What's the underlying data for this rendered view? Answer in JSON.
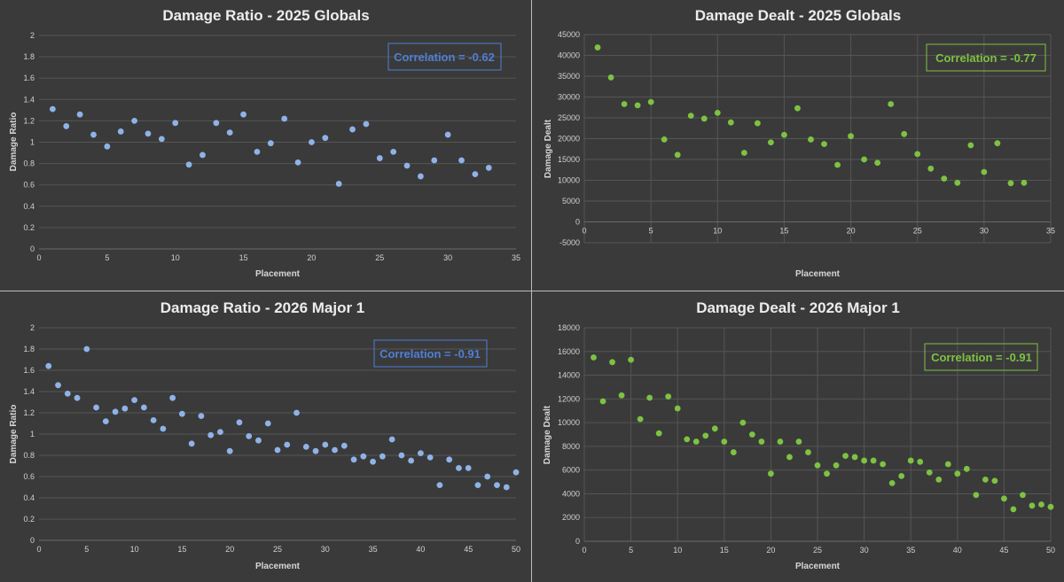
{
  "chart_data": [
    {
      "type": "scatter",
      "title": "Damage Ratio - 2025 Globals",
      "xlabel": "Placement",
      "ylabel": "Damage Ratio",
      "xlim": [
        0,
        35
      ],
      "ylim": [
        0,
        2
      ],
      "x_ticks": [
        "0",
        "5",
        "10",
        "15",
        "20",
        "25",
        "30",
        "35"
      ],
      "y_ticks": [
        "0",
        "0.2",
        "0.4",
        "0.6",
        "0.8",
        "1",
        "1.2",
        "1.4",
        "1.6",
        "1.8",
        "2"
      ],
      "grid": "horizontal",
      "color": "#8fb2e8",
      "annotation": "Correlation = -0.62",
      "annotation_color": "#4f7fd6",
      "x": [
        1,
        2,
        3,
        4,
        5,
        6,
        7,
        8,
        9,
        10,
        11,
        12,
        13,
        14,
        15,
        16,
        17,
        18,
        19,
        20,
        21,
        22,
        23,
        24,
        25,
        26,
        27,
        28,
        29,
        30,
        31,
        32,
        33
      ],
      "y": [
        1.31,
        1.15,
        1.26,
        1.07,
        0.96,
        1.1,
        1.2,
        1.08,
        1.03,
        1.18,
        0.79,
        0.88,
        1.18,
        1.09,
        1.26,
        0.91,
        0.99,
        1.22,
        0.81,
        1.0,
        1.04,
        0.61,
        1.12,
        1.17,
        0.85,
        0.91,
        0.78,
        0.68,
        0.83,
        1.07,
        0.83,
        0.7,
        0.76
      ]
    },
    {
      "type": "scatter",
      "title": "Damage Dealt - 2025 Globals",
      "xlabel": "Placement",
      "ylabel": "Damage Dealt",
      "xlim": [
        0,
        35
      ],
      "ylim": [
        -5000,
        45000
      ],
      "x_ticks": [
        "0",
        "5",
        "10",
        "15",
        "20",
        "25",
        "30",
        "35"
      ],
      "y_ticks": [
        "-5000",
        "0",
        "5000",
        "10000",
        "15000",
        "20000",
        "25000",
        "30000",
        "35000",
        "40000",
        "45000"
      ],
      "grid": "both",
      "color": "#7dc242",
      "annotation": "Correlation = -0.77",
      "annotation_color": "#7dc242",
      "x": [
        1,
        2,
        3,
        4,
        5,
        6,
        7,
        8,
        9,
        10,
        11,
        12,
        13,
        14,
        15,
        16,
        17,
        18,
        19,
        20,
        21,
        22,
        23,
        24,
        25,
        26,
        27,
        28,
        29,
        30,
        31,
        32,
        33
      ],
      "y": [
        41900,
        34700,
        28300,
        28000,
        28800,
        19800,
        16100,
        25500,
        24800,
        26200,
        23900,
        16600,
        23700,
        19100,
        20900,
        27300,
        19800,
        18700,
        13700,
        20600,
        15000,
        14200,
        28300,
        21100,
        16300,
        12800,
        10400,
        9400,
        18400,
        12000,
        18900,
        9300,
        9400
      ]
    },
    {
      "type": "scatter",
      "title": "Damage Ratio - 2026 Major 1",
      "xlabel": "Placement",
      "ylabel": "Damage Ratio",
      "xlim": [
        0,
        50
      ],
      "ylim": [
        0,
        2
      ],
      "x_ticks": [
        "0",
        "5",
        "10",
        "15",
        "20",
        "25",
        "30",
        "35",
        "40",
        "45",
        "50"
      ],
      "y_ticks": [
        "0",
        "0.2",
        "0.4",
        "0.6",
        "0.8",
        "1",
        "1.2",
        "1.4",
        "1.6",
        "1.8",
        "2"
      ],
      "grid": "horizontal",
      "color": "#8fb2e8",
      "annotation": "Correlation = -0.91",
      "annotation_color": "#4f7fd6",
      "x": [
        1,
        2,
        3,
        4,
        5,
        6,
        7,
        8,
        9,
        10,
        11,
        12,
        13,
        14,
        15,
        16,
        17,
        18,
        19,
        20,
        21,
        22,
        23,
        24,
        25,
        26,
        27,
        28,
        29,
        30,
        31,
        32,
        33,
        34,
        35,
        36,
        37,
        38,
        39,
        40,
        41,
        42,
        43,
        44,
        45,
        46,
        47,
        48,
        49,
        50
      ],
      "y": [
        1.64,
        1.46,
        1.38,
        1.34,
        1.8,
        1.25,
        1.12,
        1.21,
        1.24,
        1.32,
        1.25,
        1.13,
        1.05,
        1.34,
        1.19,
        0.91,
        1.17,
        0.99,
        1.02,
        0.84,
        1.11,
        0.98,
        0.94,
        1.1,
        0.85,
        0.9,
        1.2,
        0.88,
        0.84,
        0.9,
        0.85,
        0.89,
        0.76,
        0.79,
        0.74,
        0.79,
        0.95,
        0.8,
        0.75,
        0.82,
        0.78,
        0.52,
        0.76,
        0.68,
        0.68,
        0.52,
        0.6,
        0.52,
        0.5,
        0.64
      ]
    },
    {
      "type": "scatter",
      "title": "Damage Dealt - 2026 Major 1",
      "xlabel": "Placement",
      "ylabel": "Damage Dealt",
      "xlim": [
        0,
        50
      ],
      "ylim": [
        0,
        18000
      ],
      "x_ticks": [
        "0",
        "5",
        "10",
        "15",
        "20",
        "25",
        "30",
        "35",
        "40",
        "45",
        "50"
      ],
      "y_ticks": [
        "0",
        "2000",
        "4000",
        "6000",
        "8000",
        "10000",
        "12000",
        "14000",
        "16000",
        "18000"
      ],
      "grid": "both",
      "color": "#7dc242",
      "annotation": "Correlation = -0.91",
      "annotation_color": "#7dc242",
      "x": [
        1,
        2,
        3,
        4,
        5,
        6,
        7,
        8,
        9,
        10,
        11,
        12,
        13,
        14,
        15,
        16,
        17,
        18,
        19,
        20,
        21,
        22,
        23,
        24,
        25,
        26,
        27,
        28,
        29,
        30,
        31,
        32,
        33,
        34,
        35,
        36,
        37,
        38,
        39,
        40,
        41,
        42,
        43,
        44,
        45,
        46,
        47,
        48,
        49,
        50
      ],
      "y": [
        15500,
        11800,
        15100,
        12300,
        15300,
        10300,
        12100,
        9100,
        12200,
        11200,
        8600,
        8400,
        8900,
        9500,
        8400,
        7500,
        10000,
        9000,
        8400,
        5700,
        8400,
        7100,
        8400,
        7500,
        6400,
        5700,
        6400,
        7200,
        7100,
        6800,
        6800,
        6500,
        4900,
        5500,
        6800,
        6700,
        5800,
        5200,
        6500,
        5700,
        6100,
        3900,
        5200,
        5100,
        3600,
        2700,
        3900,
        3000,
        3100,
        2900
      ]
    }
  ]
}
